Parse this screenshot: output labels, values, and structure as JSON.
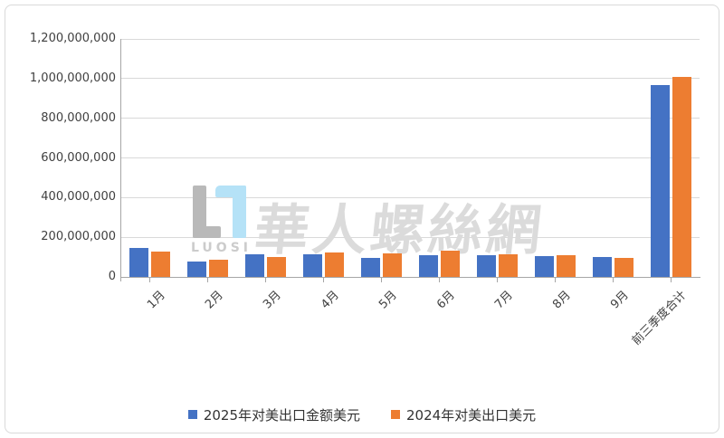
{
  "watermark": {
    "logo_text": "LUOSI",
    "site_name": "華人螺絲網",
    "logo_gray_color": "#b9b9b9",
    "logo_blue_color": "#b5e2f7"
  },
  "colors": {
    "series_2025": "#4472C4",
    "series_2024": "#ED7D31",
    "gridline": "#d9d9d9",
    "axis": "#a6a6a6",
    "label_text": "#404040"
  },
  "chart_data": {
    "type": "bar",
    "title": "",
    "xlabel": "",
    "ylabel": "",
    "categories": [
      "1月",
      "2月",
      "3月",
      "4月",
      "5月",
      "6月",
      "7月",
      "8月",
      "9月",
      "前三季度合计"
    ],
    "series": [
      {
        "name": "2025年对美出口金额美元",
        "color": "#4472C4",
        "values": [
          145000000,
          78000000,
          112000000,
          115000000,
          95000000,
          110000000,
          109000000,
          105000000,
          99000000,
          968000000
        ]
      },
      {
        "name": "2024年对美出口美元",
        "color": "#ED7D31",
        "values": [
          130000000,
          88000000,
          101000000,
          121000000,
          118000000,
          132000000,
          115000000,
          110000000,
          95000000,
          1010000000
        ]
      }
    ],
    "ylim": [
      0,
      1200000000
    ],
    "y_tick_interval": 200000000,
    "y_tick_labels": [
      "1,200,000,000",
      "1,000,000,000",
      "800,000,000",
      "600,000,000",
      "400,000,000",
      "200,000,000",
      "0"
    ],
    "grid": "horizontal",
    "legend_position": "bottom"
  }
}
